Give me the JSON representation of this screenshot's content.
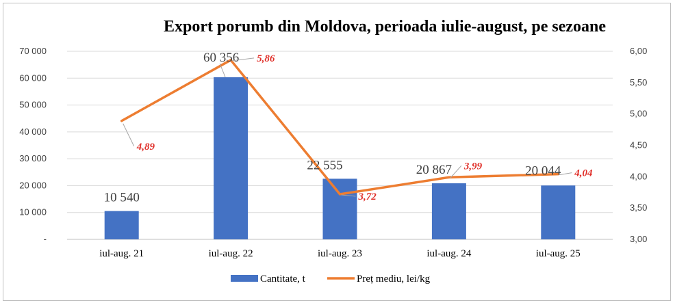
{
  "chart_data": {
    "type": "bar",
    "title": "Export porumb din Moldova, perioada iulie-august, pe sezoane",
    "categories": [
      "iul-aug. 21",
      "iul-aug. 22",
      "iul-aug. 23",
      "iul-aug. 24",
      "iul-aug. 25"
    ],
    "series": [
      {
        "name": "Cantitate, t",
        "type": "bar",
        "axis": "left",
        "color": "#4472c4",
        "values": [
          10540,
          60356,
          22555,
          20867,
          20044
        ],
        "labels": [
          "10 540",
          "60 356",
          "22 555",
          "20 867",
          "20 044"
        ]
      },
      {
        "name": "Preț mediu, lei/kg",
        "type": "line",
        "axis": "right",
        "color": "#ed7d31",
        "values": [
          4.89,
          5.86,
          3.72,
          3.99,
          4.04
        ],
        "labels": [
          "4,89",
          "5,86",
          "3,72",
          "3,99",
          "4,04"
        ],
        "label_color": "#e0302a"
      }
    ],
    "y_left": {
      "ylim": [
        0,
        70000
      ],
      "ticks": [
        0,
        10000,
        20000,
        30000,
        40000,
        50000,
        60000,
        70000
      ],
      "tick_labels": [
        "-",
        "10 000",
        "20 000",
        "30 000",
        "40 000",
        "50 000",
        "60 000",
        "70 000"
      ]
    },
    "y_right": {
      "ylim": [
        3.0,
        6.0
      ],
      "ticks": [
        3.0,
        3.5,
        4.0,
        4.5,
        5.0,
        5.5,
        6.0
      ],
      "tick_labels": [
        "3,00",
        "3,50",
        "4,00",
        "4,50",
        "5,00",
        "5,50",
        "6,00"
      ]
    },
    "grid": true,
    "legend_position": "bottom"
  }
}
